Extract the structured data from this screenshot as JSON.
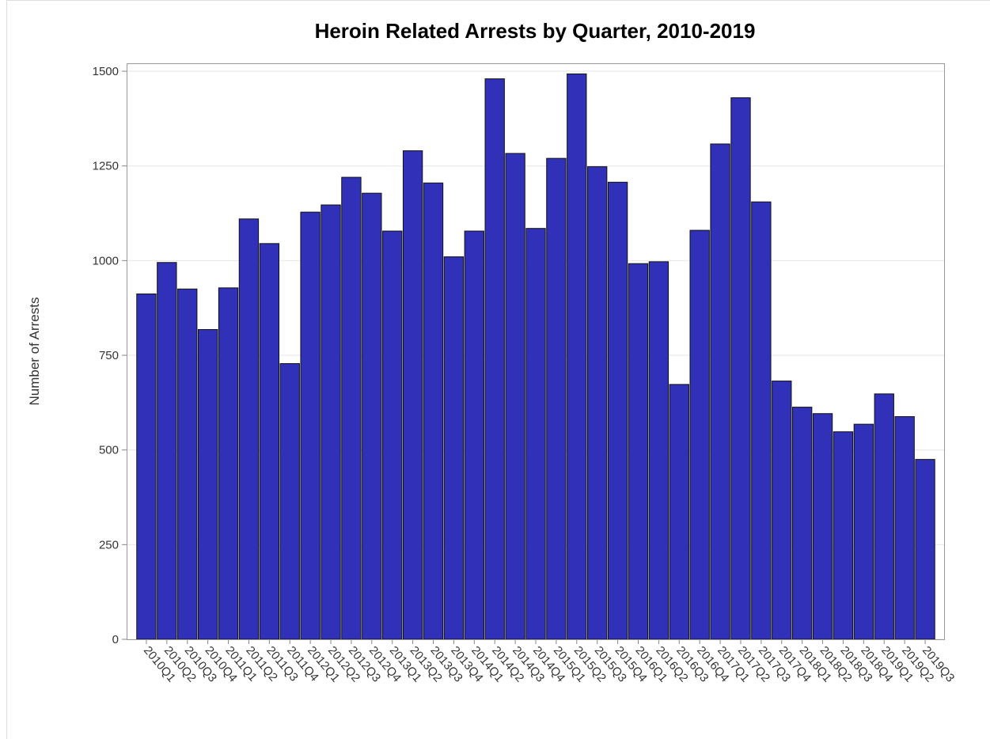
{
  "chart_data": {
    "type": "bar",
    "title": "Heroin Related Arrests by Quarter, 2010-2019",
    "y_label": "Number of Arrests",
    "categories": [
      "2010Q1",
      "2010Q2",
      "2010Q3",
      "2010Q4",
      "2011Q1",
      "2011Q2",
      "2011Q3",
      "2011Q4",
      "2012Q1",
      "2012Q2",
      "2012Q3",
      "2012Q4",
      "2013Q1",
      "2013Q2",
      "2013Q3",
      "2013Q4",
      "2014Q1",
      "2014Q2",
      "2014Q3",
      "2014Q4",
      "2015Q1",
      "2015Q2",
      "2015Q3",
      "2015Q4",
      "2016Q1",
      "2016Q2",
      "2016Q3",
      "2016Q4",
      "2017Q1",
      "2017Q2",
      "2017Q3",
      "2017Q4",
      "2018Q1",
      "2018Q2",
      "2018Q3",
      "2018Q4",
      "2019Q1",
      "2019Q2",
      "2019Q3"
    ],
    "values": [
      912,
      995,
      925,
      818,
      928,
      1110,
      1045,
      728,
      1128,
      1147,
      1220,
      1178,
      1078,
      1290,
      1205,
      1010,
      1078,
      1480,
      1283,
      1085,
      1270,
      1493,
      1248,
      1207,
      992,
      997,
      673,
      1080,
      1308,
      1430,
      1155,
      682,
      613,
      596,
      548,
      568,
      648,
      588,
      475
    ],
    "color": "#3030b8",
    "ylim": [
      0,
      1521
    ],
    "yticks": [
      0,
      250,
      500,
      750,
      1000,
      1250,
      1500
    ],
    "grid": true
  }
}
